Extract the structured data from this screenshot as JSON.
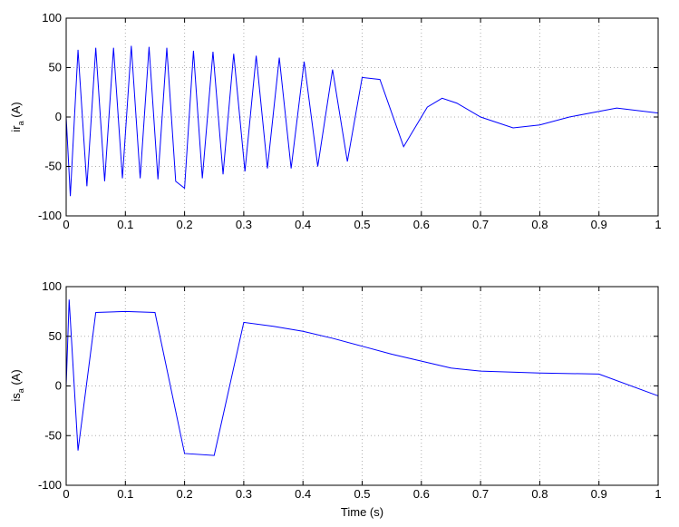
{
  "chart_data": [
    {
      "type": "line",
      "id": "ir",
      "ylabel_main": "ir",
      "ylabel_sub": "a",
      "ylabel_unit": " (A)",
      "xlabel": "",
      "xlim": [
        0,
        1
      ],
      "ylim": [
        -100,
        100
      ],
      "xticks": [
        0,
        0.1,
        0.2,
        0.3,
        0.4,
        0.5,
        0.6,
        0.7,
        0.8,
        0.9,
        1
      ],
      "xtick_labels": [
        "0",
        "0.1",
        "0.2",
        "0.3",
        "0.4",
        "0.5",
        "0.6",
        "0.7",
        "0.8",
        "0.9",
        "1"
      ],
      "yticks": [
        -100,
        -50,
        0,
        50,
        100
      ],
      "ytick_labels": [
        "-100",
        "-50",
        "0",
        "50",
        "100"
      ],
      "grid": true,
      "line_color": "#0000ff",
      "series": [
        {
          "values": [
            [
              0,
              0
            ],
            [
              0.007,
              -80
            ],
            [
              0.02,
              68
            ],
            [
              0.035,
              -70
            ],
            [
              0.05,
              70
            ],
            [
              0.065,
              -65
            ],
            [
              0.08,
              70
            ],
            [
              0.095,
              -62
            ],
            [
              0.11,
              72
            ],
            [
              0.125,
              -62
            ],
            [
              0.14,
              71
            ],
            [
              0.155,
              -63
            ],
            [
              0.17,
              70
            ],
            [
              0.185,
              -65
            ],
            [
              0.2,
              -72
            ],
            [
              0.215,
              67
            ],
            [
              0.23,
              -62
            ],
            [
              0.248,
              66
            ],
            [
              0.265,
              -58
            ],
            [
              0.283,
              64
            ],
            [
              0.302,
              -55
            ],
            [
              0.321,
              62
            ],
            [
              0.34,
              -52
            ],
            [
              0.36,
              60
            ],
            [
              0.38,
              -52
            ],
            [
              0.402,
              56
            ],
            [
              0.425,
              -50
            ],
            [
              0.45,
              48
            ],
            [
              0.475,
              -45
            ],
            [
              0.5,
              40
            ],
            [
              0.53,
              38
            ],
            [
              0.57,
              -30
            ],
            [
              0.61,
              10
            ],
            [
              0.635,
              19
            ],
            [
              0.66,
              14
            ],
            [
              0.7,
              0
            ],
            [
              0.755,
              -11
            ],
            [
              0.8,
              -8
            ],
            [
              0.85,
              0
            ],
            [
              0.93,
              9
            ],
            [
              1.0,
              4
            ]
          ]
        }
      ]
    },
    {
      "type": "line",
      "id": "is",
      "ylabel_main": "is",
      "ylabel_sub": "a",
      "ylabel_unit": " (A)",
      "xlabel": "Time (s)",
      "xlim": [
        0,
        1
      ],
      "ylim": [
        -100,
        100
      ],
      "xticks": [
        0,
        0.1,
        0.2,
        0.3,
        0.4,
        0.5,
        0.6,
        0.7,
        0.8,
        0.9,
        1
      ],
      "xtick_labels": [
        "0",
        "0.1",
        "0.2",
        "0.3",
        "0.4",
        "0.5",
        "0.6",
        "0.7",
        "0.8",
        "0.9",
        "1"
      ],
      "yticks": [
        -100,
        -50,
        0,
        50,
        100
      ],
      "ytick_labels": [
        "-100",
        "-50",
        "0",
        "50",
        "100"
      ],
      "grid": true,
      "line_color": "#0000ff",
      "series": [
        {
          "values": [
            [
              0,
              0
            ],
            [
              0.005,
              87
            ],
            [
              0.02,
              -65
            ],
            [
              0.05,
              74
            ],
            [
              0.1,
              75
            ],
            [
              0.15,
              74
            ],
            [
              0.2,
              -68
            ],
            [
              0.25,
              -70
            ],
            [
              0.3,
              64
            ],
            [
              0.35,
              60
            ],
            [
              0.4,
              55
            ],
            [
              0.45,
              48
            ],
            [
              0.5,
              40
            ],
            [
              0.55,
              32
            ],
            [
              0.6,
              25
            ],
            [
              0.65,
              18
            ],
            [
              0.7,
              15
            ],
            [
              0.8,
              13
            ],
            [
              0.9,
              12
            ],
            [
              1.0,
              -10
            ]
          ]
        }
      ]
    }
  ]
}
